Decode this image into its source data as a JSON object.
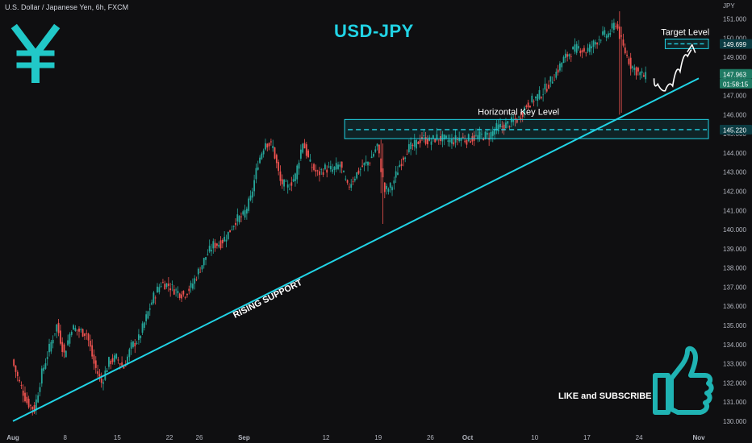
{
  "header": {
    "symbol_line": "U.S. Dollar / Japanese Yen, 6h, FXCM",
    "currency": "JPY"
  },
  "title": "USD-JPY",
  "annotations": {
    "target_level": "Target Level",
    "horizontal_key_level": "Horizontal Key Level",
    "rising_support": "RISING SUPPORT",
    "like_subscribe": "LIKE and SUBSCRIBE"
  },
  "price_tags": {
    "target": "149.699",
    "current": "147.963",
    "countdown": "01:58:15",
    "key_level": "145.220"
  },
  "colors": {
    "up": "#26a69a",
    "down": "#ef5350",
    "accent": "#21d4e6",
    "background": "#0f0f11"
  },
  "icons": {
    "yen": "yen-sign-icon",
    "thumbs_up": "thumbs-up-icon"
  },
  "chart_data": {
    "type": "candlestick",
    "title": "USD-JPY",
    "ylabel": "JPY",
    "ylim": [
      129.7,
      151.4
    ],
    "y_ticks": [
      "130.000",
      "131.000",
      "132.000",
      "133.000",
      "134.000",
      "135.000",
      "136.000",
      "137.000",
      "138.000",
      "139.000",
      "140.000",
      "141.000",
      "142.000",
      "143.000",
      "144.000",
      "145.000",
      "146.000",
      "147.000",
      "148.000",
      "149.000",
      "150.000",
      "151.000"
    ],
    "x_ticks": [
      {
        "label": "Aug",
        "day": 1
      },
      {
        "label": "8",
        "day": 8
      },
      {
        "label": "15",
        "day": 15
      },
      {
        "label": "22",
        "day": 22
      },
      {
        "label": "26",
        "day": 26
      },
      {
        "label": "Sep",
        "day": 32
      },
      {
        "label": "12",
        "day": 43
      },
      {
        "label": "19",
        "day": 50
      },
      {
        "label": "26",
        "day": 57
      },
      {
        "label": "Oct",
        "day": 62
      },
      {
        "label": "10",
        "day": 71
      },
      {
        "label": "17",
        "day": 78
      },
      {
        "label": "24",
        "day": 85
      },
      {
        "label": "Nov",
        "day": 93
      }
    ],
    "x_range_days": [
      1,
      93
    ],
    "price_path": [
      [
        1,
        133.2
      ],
      [
        2,
        132.0
      ],
      [
        3,
        131.0
      ],
      [
        4,
        130.6
      ],
      [
        5,
        132.5
      ],
      [
        6,
        133.8
      ],
      [
        7,
        135.0
      ],
      [
        8,
        133.5
      ],
      [
        9,
        134.9
      ],
      [
        10,
        134.7
      ],
      [
        11,
        134.6
      ],
      [
        12,
        133.0
      ],
      [
        13,
        132.0
      ],
      [
        14,
        133.1
      ],
      [
        15,
        133.3
      ],
      [
        16,
        132.8
      ],
      [
        17,
        133.9
      ],
      [
        18,
        134.3
      ],
      [
        19,
        135.4
      ],
      [
        20,
        136.5
      ],
      [
        21,
        137.2
      ],
      [
        22,
        137.1
      ],
      [
        23,
        136.8
      ],
      [
        24,
        136.6
      ],
      [
        25,
        137.0
      ],
      [
        26,
        137.8
      ],
      [
        27,
        138.6
      ],
      [
        28,
        139.2
      ],
      [
        29,
        139.3
      ],
      [
        30,
        139.8
      ],
      [
        31,
        140.5
      ],
      [
        32,
        140.7
      ],
      [
        33,
        141.6
      ],
      [
        34,
        143.5
      ],
      [
        35,
        144.6
      ],
      [
        36,
        144.3
      ],
      [
        37,
        142.5
      ],
      [
        38,
        142.2
      ],
      [
        39,
        142.8
      ],
      [
        40,
        144.6
      ],
      [
        41,
        143.4
      ],
      [
        42,
        142.9
      ],
      [
        43,
        143.2
      ],
      [
        44,
        143.1
      ],
      [
        45,
        143.4
      ],
      [
        46,
        142.2
      ],
      [
        47,
        142.8
      ],
      [
        48,
        143.3
      ],
      [
        49,
        143.6
      ],
      [
        50,
        144.4
      ],
      [
        51,
        142.0
      ],
      [
        52,
        142.3
      ],
      [
        53,
        143.4
      ],
      [
        54,
        144.2
      ],
      [
        55,
        144.4
      ],
      [
        56,
        144.8
      ],
      [
        57,
        144.6
      ],
      [
        58,
        144.8
      ],
      [
        59,
        144.7
      ],
      [
        60,
        144.6
      ],
      [
        61,
        144.8
      ],
      [
        62,
        144.7
      ],
      [
        63,
        144.8
      ],
      [
        64,
        144.9
      ],
      [
        65,
        144.9
      ],
      [
        66,
        145.3
      ],
      [
        67,
        145.4
      ],
      [
        68,
        145.6
      ],
      [
        69,
        145.8
      ],
      [
        70,
        146.5
      ],
      [
        71,
        146.8
      ],
      [
        72,
        147.1
      ],
      [
        73,
        147.6
      ],
      [
        74,
        148.2
      ],
      [
        75,
        148.9
      ],
      [
        76,
        149.3
      ],
      [
        77,
        149.5
      ],
      [
        78,
        149.3
      ],
      [
        79,
        149.7
      ],
      [
        80,
        150.1
      ],
      [
        81,
        150.2
      ],
      [
        82,
        150.8
      ],
      [
        83,
        149.5
      ],
      [
        84,
        148.6
      ],
      [
        85,
        148.2
      ],
      [
        86,
        147.96
      ]
    ],
    "overlays": {
      "key_level": 145.22,
      "key_zone": [
        144.75,
        145.75
      ],
      "target_level": 149.699,
      "target_zone": [
        149.45,
        149.95
      ],
      "rising_support": [
        [
          1,
          130.0
        ],
        [
          93,
          147.9
        ]
      ],
      "projected_path": [
        [
          87,
          147.9
        ],
        [
          88,
          147.3
        ],
        [
          89,
          147.2
        ],
        [
          90,
          147.8
        ],
        [
          91,
          148.7
        ],
        [
          92,
          149.4
        ]
      ]
    }
  }
}
